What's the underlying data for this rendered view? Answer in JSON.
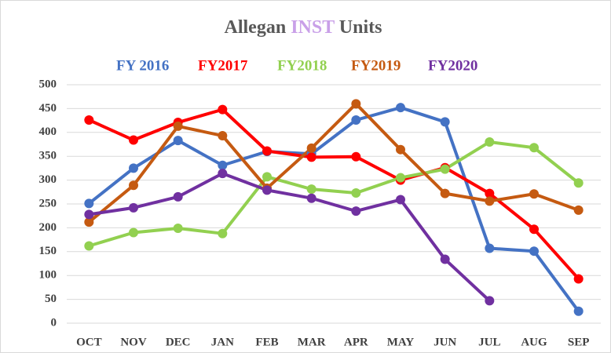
{
  "chart_data": {
    "type": "line",
    "title": [
      "Allegan",
      "INST",
      "Units"
    ],
    "title_colors": [
      "#595959",
      "#c9a0e8",
      "#595959"
    ],
    "categories": [
      "OCT",
      "NOV",
      "DEC",
      "JAN",
      "FEB",
      "MAR",
      "APR",
      "MAY",
      "JUN",
      "JUL",
      "AUG",
      "SEP"
    ],
    "series": [
      {
        "name": "FY 2016",
        "color": "#4472c4",
        "values": [
          251,
          325,
          383,
          331,
          360,
          355,
          426,
          452,
          422,
          157,
          151,
          25
        ]
      },
      {
        "name": "FY2017",
        "color": "#ff0000",
        "values": [
          426,
          384,
          421,
          448,
          361,
          348,
          349,
          300,
          326,
          272,
          197,
          93
        ]
      },
      {
        "name": "FY2018",
        "color": "#92d050",
        "values": [
          162,
          190,
          199,
          188,
          307,
          281,
          273,
          305,
          323,
          380,
          368,
          294
        ]
      },
      {
        "name": "FY2019",
        "color": "#c55a11",
        "values": [
          212,
          289,
          413,
          393,
          283,
          367,
          460,
          364,
          272,
          256,
          271,
          237
        ]
      },
      {
        "name": "FY2020",
        "color": "#7030a0",
        "values": [
          228,
          242,
          265,
          314,
          279,
          262,
          235,
          259,
          134,
          47,
          null,
          null
        ]
      }
    ],
    "ylim": [
      0,
      500
    ],
    "yticks": [
      0,
      50,
      100,
      150,
      200,
      250,
      300,
      350,
      400,
      450,
      500
    ],
    "grid": true
  }
}
